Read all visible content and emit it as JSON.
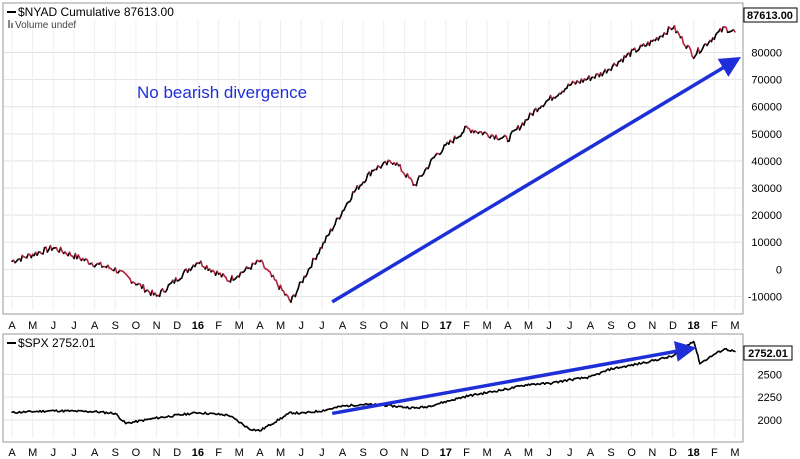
{
  "chart_data": [
    {
      "type": "line",
      "panel": "top",
      "title": "$NYAD Cumulative 87613.00",
      "subtitle": "Volume undef",
      "annotation": "No bearish divergence",
      "last_value_label": "87613.00",
      "ylim": [
        -15000,
        92000
      ],
      "yticks": [
        -10000,
        0,
        10000,
        20000,
        30000,
        40000,
        50000,
        60000,
        70000,
        80000
      ],
      "ytick_labels": [
        "-10000",
        "0",
        "10000",
        "20000",
        "30000",
        "40000",
        "50000",
        "60000",
        "70000",
        "80000"
      ],
      "x": [
        0,
        2,
        4,
        5,
        7,
        9,
        10.5,
        12,
        13.5,
        14.5,
        15.5,
        16.5,
        17.5,
        18.5,
        19.5,
        20.5,
        22,
        24,
        25.5,
        27,
        28.5,
        30,
        31,
        32,
        33,
        34,
        34.5,
        35
      ],
      "values": [
        3000,
        8000,
        2000,
        0,
        -10000,
        3000,
        -4000,
        3000,
        -12000,
        2000,
        15000,
        28000,
        37000,
        40000,
        31000,
        42000,
        52000,
        48000,
        60000,
        68000,
        72000,
        80000,
        84000,
        89500,
        79000,
        86000,
        89000,
        87613
      ],
      "trend_arrow": {
        "from": [
          15.5,
          -12000
        ],
        "to": [
          35,
          77000
        ]
      },
      "color_down": "#b5233e",
      "color_line": "#000000",
      "arrow_color": "#1f2fd8"
    },
    {
      "type": "line",
      "panel": "bottom",
      "title": "$SPX 2752.01",
      "last_value_label": "2752.01",
      "ylim": [
        1800,
        2900
      ],
      "yticks": [
        2000,
        2250,
        2500
      ],
      "ytick_labels": [
        "2000",
        "2250",
        "2500"
      ],
      "x": [
        0,
        2,
        4,
        5,
        5.5,
        7,
        9,
        10.5,
        11.5,
        12,
        13.5,
        14,
        15,
        16,
        17,
        18,
        19.5,
        20,
        21,
        22,
        23,
        24,
        25,
        26,
        27,
        28,
        29,
        30,
        31,
        32,
        33,
        33.3,
        34,
        34.5,
        35
      ],
      "values": [
        2080,
        2100,
        2090,
        2070,
        1960,
        2020,
        2080,
        2050,
        1900,
        1880,
        2080,
        2070,
        2100,
        2150,
        2170,
        2160,
        2130,
        2140,
        2200,
        2260,
        2300,
        2340,
        2390,
        2400,
        2440,
        2470,
        2560,
        2600,
        2650,
        2700,
        2870,
        2620,
        2720,
        2780,
        2752
      ],
      "trend_arrow": {
        "from": [
          15.5,
          2070
        ],
        "to": [
          32.8,
          2780
        ]
      },
      "color_line": "#000000",
      "arrow_color": "#1f2fd8"
    }
  ],
  "x_axis_months": [
    "A",
    "M",
    "J",
    "J",
    "A",
    "S",
    "O",
    "N",
    "D",
    "16",
    "F",
    "M",
    "A",
    "M",
    "J",
    "J",
    "A",
    "S",
    "O",
    "N",
    "D",
    "17",
    "F",
    "M",
    "A",
    "M",
    "J",
    "J",
    "A",
    "S",
    "O",
    "N",
    "D",
    "18",
    "F",
    "M"
  ],
  "x_axis_year_labels": [
    "16",
    "17",
    "18"
  ]
}
